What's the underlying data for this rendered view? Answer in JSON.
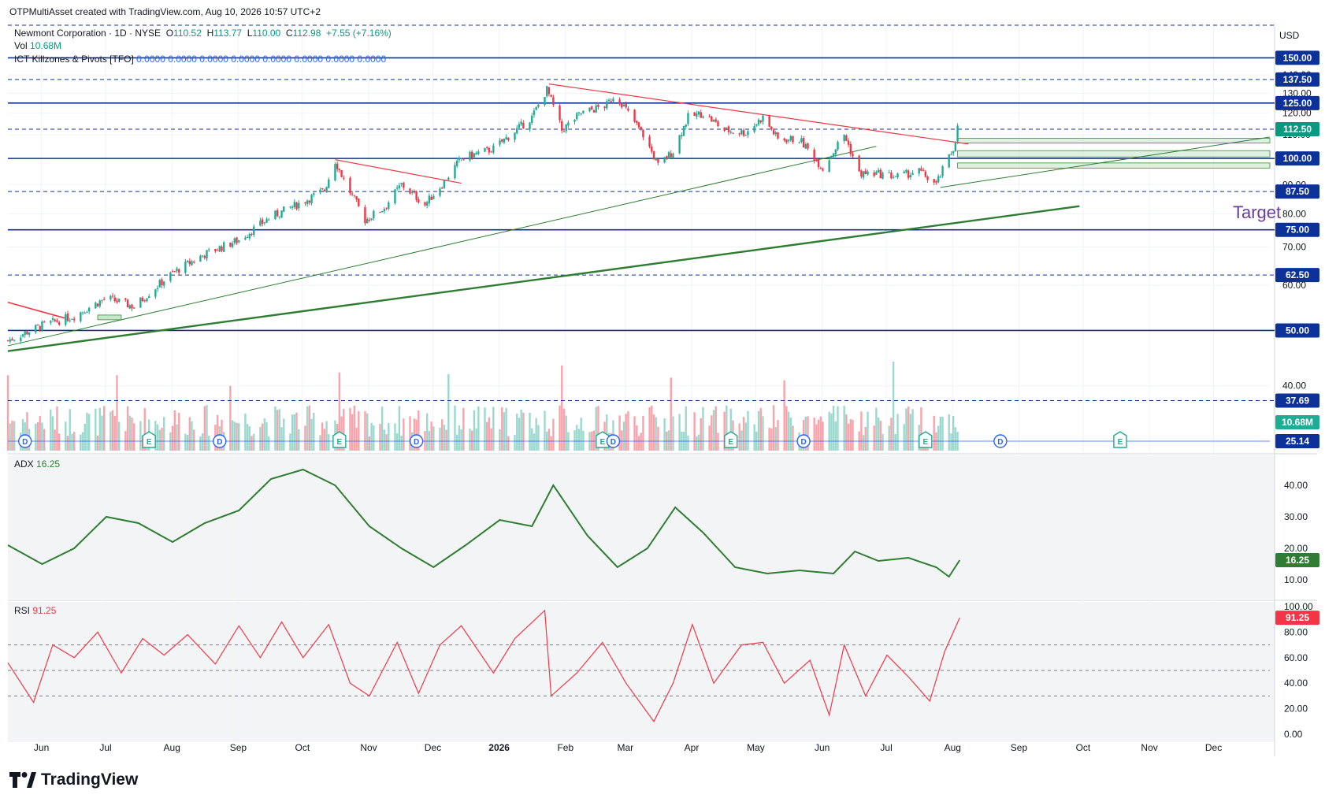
{
  "header": {
    "created_by": "OTPMultiAsset created with TradingView.com, Aug 10, 2026 10:57 UTC+2",
    "symbol_line": "Newmont Corporation · 1D · NYSE",
    "ohlc": {
      "o_label": "O",
      "o": "110.52",
      "h_label": "H",
      "h": "113.77",
      "l_label": "L",
      "l": "110.00",
      "c_label": "C",
      "c": "112.98",
      "change": "+7.55 (+7.16%)"
    },
    "vol_label": "Vol",
    "vol_value": "10.68M",
    "indicator_label": "ICT Killzones & Pivots [TFO]",
    "indicator_values": "0.0000  0.0000  0.0000  0.0000  0.0000  0.0000  0.0000  0.0000",
    "currency": "USD"
  },
  "colors": {
    "up": "#22ab94",
    "down": "#f23645",
    "level_line": "#0c3299",
    "trend_red": "#f23645",
    "trend_green": "#2e7d32",
    "adx_line": "#2e7d32",
    "rsi_line": "#f23645",
    "zone_fill": "#c8e6c9",
    "target_text": "#6a3d9a"
  },
  "chart_data": [
    {
      "type": "line",
      "title": "Newmont Corporation · 1D · NYSE",
      "kind": "candlestick price (approximate closes)",
      "x_labels": [
        "Jun",
        "Jul",
        "Aug",
        "Sep",
        "Oct",
        "Nov",
        "Dec",
        "2026",
        "Feb",
        "Mar",
        "Apr",
        "May",
        "Jun",
        "Jul",
        "Aug",
        "Sep",
        "Oct",
        "Nov",
        "Dec"
      ],
      "y_axis_ticks": [
        40,
        50,
        60,
        70,
        80,
        90,
        100,
        110,
        120,
        130,
        140
      ],
      "y_scale": "log",
      "ylim": [
        32,
        170
      ],
      "price_levels_solid": [
        150.0,
        125.0,
        100.0,
        75.0,
        50.0
      ],
      "price_levels_dashed": [
        137.5,
        112.5,
        87.5,
        62.5,
        37.69
      ],
      "last_price": "112.50",
      "volume_label": "10.68M",
      "volume_axis_label": "25.14",
      "target_label": "Target",
      "closes": [
        {
          "date": "2025-05-20",
          "close": 48
        },
        {
          "date": "2025-06-05",
          "close": 51
        },
        {
          "date": "2025-06-20",
          "close": 53
        },
        {
          "date": "2025-07-05",
          "close": 57
        },
        {
          "date": "2025-07-18",
          "close": 55
        },
        {
          "date": "2025-08-05",
          "close": 63
        },
        {
          "date": "2025-08-20",
          "close": 68
        },
        {
          "date": "2025-09-05",
          "close": 72
        },
        {
          "date": "2025-09-20",
          "close": 79
        },
        {
          "date": "2025-10-05",
          "close": 84
        },
        {
          "date": "2025-10-15",
          "close": 88
        },
        {
          "date": "2025-10-20",
          "close": 99
        },
        {
          "date": "2025-10-25",
          "close": 90
        },
        {
          "date": "2025-11-03",
          "close": 78
        },
        {
          "date": "2025-11-12",
          "close": 82
        },
        {
          "date": "2025-11-20",
          "close": 90
        },
        {
          "date": "2025-12-01",
          "close": 83
        },
        {
          "date": "2025-12-10",
          "close": 91
        },
        {
          "date": "2025-12-18",
          "close": 100
        },
        {
          "date": "2026-01-02",
          "close": 104
        },
        {
          "date": "2026-01-10",
          "close": 110
        },
        {
          "date": "2026-01-20",
          "close": 118
        },
        {
          "date": "2026-01-27",
          "close": 132
        },
        {
          "date": "2026-02-03",
          "close": 112
        },
        {
          "date": "2026-02-12",
          "close": 120
        },
        {
          "date": "2026-02-24",
          "close": 124
        },
        {
          "date": "2026-02-28",
          "close": 130
        },
        {
          "date": "2026-03-06",
          "close": 120
        },
        {
          "date": "2026-03-13",
          "close": 110
        },
        {
          "date": "2026-03-20",
          "close": 97
        },
        {
          "date": "2026-03-27",
          "close": 103
        },
        {
          "date": "2026-04-03",
          "close": 118
        },
        {
          "date": "2026-04-10",
          "close": 120
        },
        {
          "date": "2026-04-20",
          "close": 112
        },
        {
          "date": "2026-04-30",
          "close": 111
        },
        {
          "date": "2026-05-08",
          "close": 118
        },
        {
          "date": "2026-05-15",
          "close": 108
        },
        {
          "date": "2026-05-25",
          "close": 108
        },
        {
          "date": "2026-06-05",
          "close": 96
        },
        {
          "date": "2026-06-15",
          "close": 110
        },
        {
          "date": "2026-06-22",
          "close": 94
        },
        {
          "date": "2026-07-01",
          "close": 94
        },
        {
          "date": "2026-07-10",
          "close": 93
        },
        {
          "date": "2026-07-20",
          "close": 95
        },
        {
          "date": "2026-07-28",
          "close": 90
        },
        {
          "date": "2026-08-05",
          "close": 104
        },
        {
          "date": "2026-08-07",
          "close": 113
        }
      ]
    },
    {
      "type": "line",
      "title": "ADX",
      "value_label": "16.25",
      "y_axis_ticks": [
        10,
        20,
        30,
        40
      ],
      "ylim": [
        6,
        48
      ],
      "series": [
        {
          "date": "2025-05-20",
          "value": 21
        },
        {
          "date": "2025-06-05",
          "value": 15
        },
        {
          "date": "2025-06-20",
          "value": 20
        },
        {
          "date": "2025-07-05",
          "value": 30
        },
        {
          "date": "2025-07-20",
          "value": 28
        },
        {
          "date": "2025-08-05",
          "value": 22
        },
        {
          "date": "2025-08-20",
          "value": 28
        },
        {
          "date": "2025-09-05",
          "value": 32
        },
        {
          "date": "2025-09-20",
          "value": 42
        },
        {
          "date": "2025-10-05",
          "value": 45
        },
        {
          "date": "2025-10-20",
          "value": 40
        },
        {
          "date": "2025-11-05",
          "value": 27
        },
        {
          "date": "2025-11-20",
          "value": 20
        },
        {
          "date": "2025-12-05",
          "value": 14
        },
        {
          "date": "2025-12-20",
          "value": 21
        },
        {
          "date": "2026-01-05",
          "value": 29
        },
        {
          "date": "2026-01-20",
          "value": 27
        },
        {
          "date": "2026-01-30",
          "value": 40
        },
        {
          "date": "2026-02-15",
          "value": 24
        },
        {
          "date": "2026-03-01",
          "value": 14
        },
        {
          "date": "2026-03-15",
          "value": 20
        },
        {
          "date": "2026-03-28",
          "value": 33
        },
        {
          "date": "2026-04-10",
          "value": 25
        },
        {
          "date": "2026-04-25",
          "value": 14
        },
        {
          "date": "2026-05-10",
          "value": 12
        },
        {
          "date": "2026-05-25",
          "value": 13
        },
        {
          "date": "2026-06-10",
          "value": 12
        },
        {
          "date": "2026-06-20",
          "value": 19
        },
        {
          "date": "2026-07-01",
          "value": 16
        },
        {
          "date": "2026-07-15",
          "value": 17
        },
        {
          "date": "2026-07-28",
          "value": 14
        },
        {
          "date": "2026-08-03",
          "value": 11
        },
        {
          "date": "2026-08-08",
          "value": 16.25
        }
      ]
    },
    {
      "type": "line",
      "title": "RSI",
      "value_label": "91.25",
      "y_axis_ticks": [
        0,
        20,
        40,
        60,
        80,
        100
      ],
      "ylim": [
        0,
        100
      ],
      "levels": [
        70,
        50,
        30
      ],
      "series": [
        {
          "date": "2025-05-20",
          "value": 56
        },
        {
          "date": "2025-06-01",
          "value": 25
        },
        {
          "date": "2025-06-10",
          "value": 70
        },
        {
          "date": "2025-06-20",
          "value": 60
        },
        {
          "date": "2025-07-01",
          "value": 80
        },
        {
          "date": "2025-07-12",
          "value": 48
        },
        {
          "date": "2025-07-22",
          "value": 75
        },
        {
          "date": "2025-08-01",
          "value": 62
        },
        {
          "date": "2025-08-12",
          "value": 78
        },
        {
          "date": "2025-08-25",
          "value": 55
        },
        {
          "date": "2025-09-05",
          "value": 85
        },
        {
          "date": "2025-09-15",
          "value": 60
        },
        {
          "date": "2025-09-25",
          "value": 88
        },
        {
          "date": "2025-10-05",
          "value": 60
        },
        {
          "date": "2025-10-17",
          "value": 86
        },
        {
          "date": "2025-10-27",
          "value": 40
        },
        {
          "date": "2025-11-05",
          "value": 30
        },
        {
          "date": "2025-11-18",
          "value": 72
        },
        {
          "date": "2025-11-28",
          "value": 32
        },
        {
          "date": "2025-12-08",
          "value": 70
        },
        {
          "date": "2025-12-18",
          "value": 85
        },
        {
          "date": "2026-01-02",
          "value": 48
        },
        {
          "date": "2026-01-12",
          "value": 75
        },
        {
          "date": "2026-01-26",
          "value": 97
        },
        {
          "date": "2026-01-29",
          "value": 30
        },
        {
          "date": "2026-02-10",
          "value": 48
        },
        {
          "date": "2026-02-22",
          "value": 72
        },
        {
          "date": "2026-03-05",
          "value": 40
        },
        {
          "date": "2026-03-18",
          "value": 10
        },
        {
          "date": "2026-03-27",
          "value": 40
        },
        {
          "date": "2026-04-05",
          "value": 86
        },
        {
          "date": "2026-04-15",
          "value": 40
        },
        {
          "date": "2026-04-28",
          "value": 70
        },
        {
          "date": "2026-05-08",
          "value": 72
        },
        {
          "date": "2026-05-18",
          "value": 40
        },
        {
          "date": "2026-05-30",
          "value": 58
        },
        {
          "date": "2026-06-08",
          "value": 15
        },
        {
          "date": "2026-06-15",
          "value": 70
        },
        {
          "date": "2026-06-25",
          "value": 30
        },
        {
          "date": "2026-07-05",
          "value": 62
        },
        {
          "date": "2026-07-15",
          "value": 45
        },
        {
          "date": "2026-07-25",
          "value": 26
        },
        {
          "date": "2026-08-01",
          "value": 65
        },
        {
          "date": "2026-08-08",
          "value": 91.25
        }
      ]
    }
  ],
  "axis_badges": [
    "150.00",
    "137.50",
    "125.00",
    "112.50",
    "100.00",
    "87.50",
    "75.00",
    "62.50",
    "50.00",
    "37.69",
    "25.14"
  ],
  "event_markers": [
    {
      "letter": "D",
      "date": "2025-05-28"
    },
    {
      "letter": "E",
      "date": "2025-07-25"
    },
    {
      "letter": "D",
      "date": "2025-08-27"
    },
    {
      "letter": "E",
      "date": "2025-10-22"
    },
    {
      "letter": "D",
      "date": "2025-11-27"
    },
    {
      "letter": "E",
      "date": "2026-02-22"
    },
    {
      "letter": "D",
      "date": "2026-02-27"
    },
    {
      "letter": "E",
      "date": "2026-04-23"
    },
    {
      "letter": "D",
      "date": "2026-05-27"
    },
    {
      "letter": "E",
      "date": "2026-07-23"
    },
    {
      "letter": "D",
      "date": "2026-08-27"
    },
    {
      "letter": "E",
      "date": "2026-10-22"
    }
  ],
  "footer": {
    "brand": "TradingView"
  }
}
